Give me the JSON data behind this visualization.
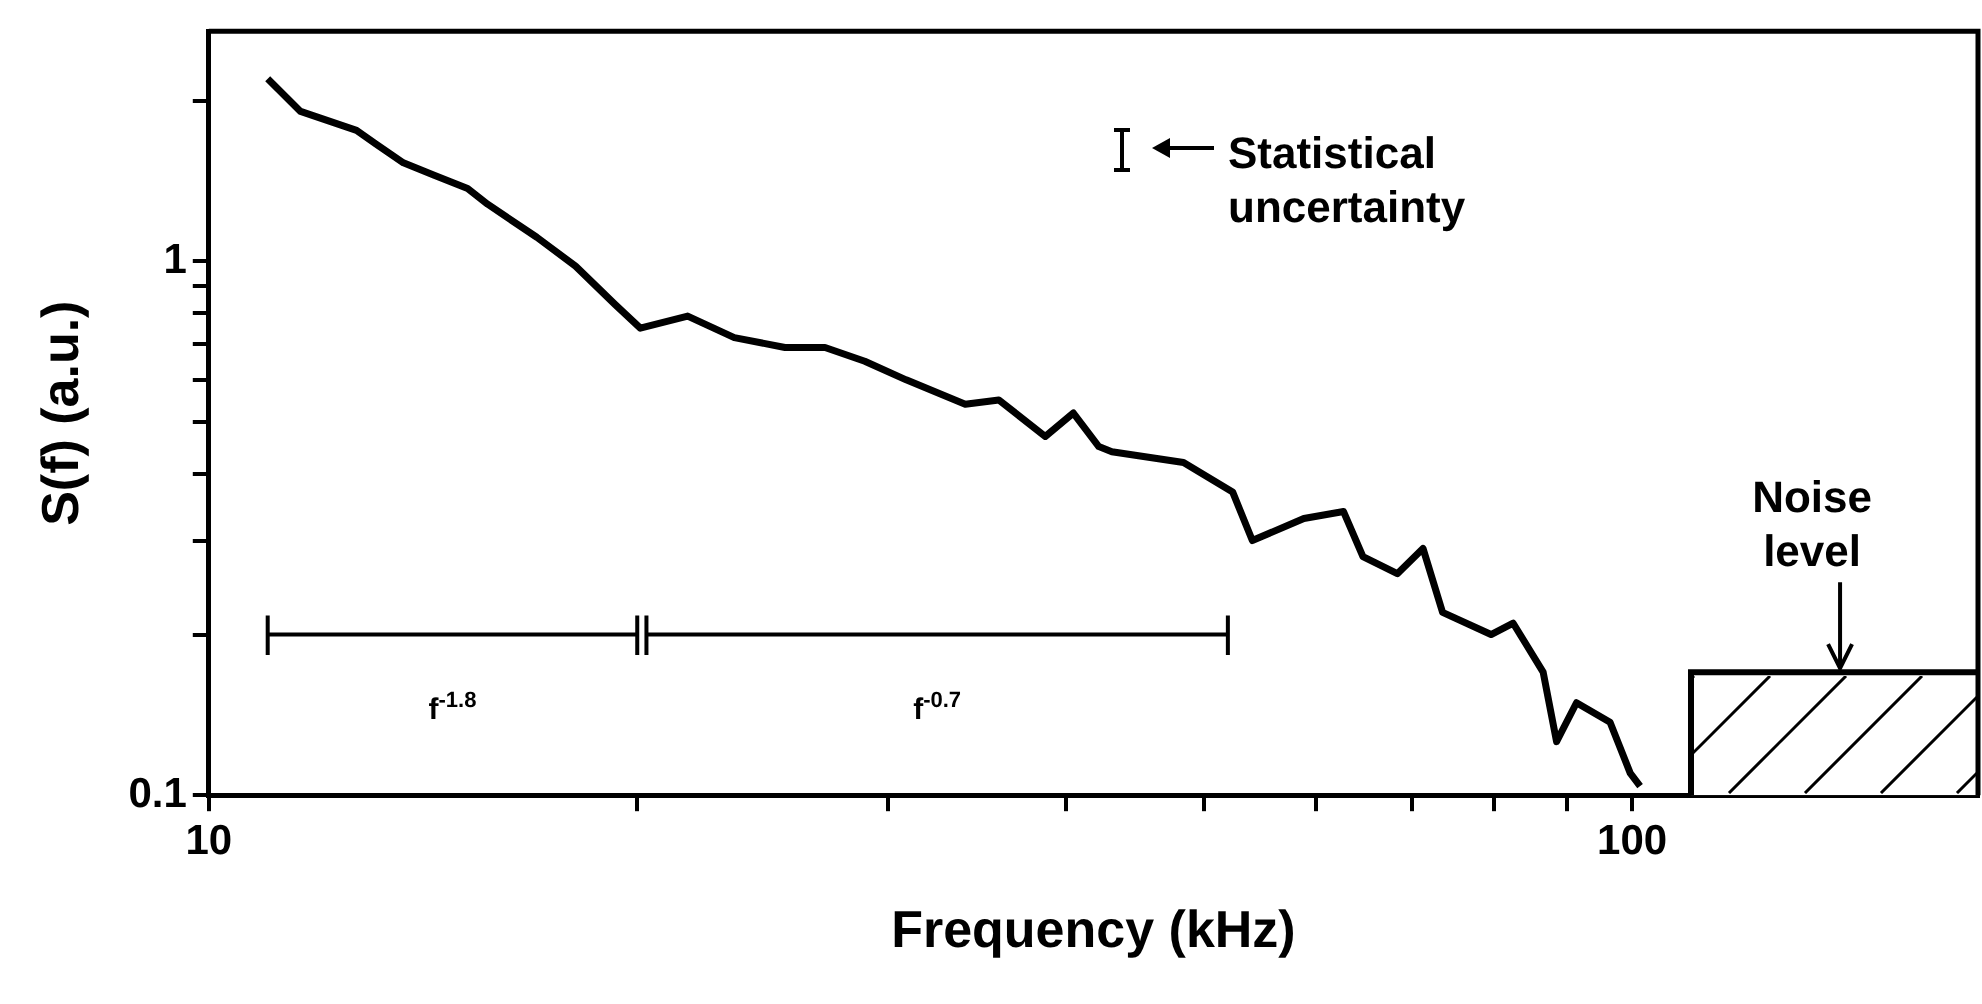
{
  "chart_data": {
    "type": "line",
    "xlabel": "Frequency (kHz)",
    "ylabel": "S(f) (a.u.)",
    "log": "xy",
    "xlim": [
      10,
      175
    ],
    "ylim": [
      0.1,
      2.7
    ],
    "xticks": [
      10,
      {
        "value": 20,
        "label": null
      },
      {
        "value": 30,
        "label": null
      },
      {
        "value": 40,
        "label": null
      },
      {
        "value": 50,
        "label": null
      },
      {
        "value": 60,
        "label": null
      },
      {
        "value": 70,
        "label": null
      },
      {
        "value": 80,
        "label": null
      },
      {
        "value": 90,
        "label": null
      },
      100
    ],
    "yticks": [
      0.1,
      {
        "value": 0.2,
        "label": null
      },
      {
        "value": 0.3,
        "label": null
      },
      {
        "value": 0.4,
        "label": null
      },
      {
        "value": 0.5,
        "label": null
      },
      {
        "value": 0.6,
        "label": null
      },
      {
        "value": 0.7,
        "label": null
      },
      {
        "value": 0.8,
        "label": null
      },
      {
        "value": 0.9,
        "label": null
      },
      1,
      {
        "value": 2,
        "label": null
      }
    ],
    "grid": false,
    "legend": false,
    "marker": "none",
    "series": [
      {
        "color": "#000000",
        "x": [
          11.0,
          11.6,
          12.7,
          13.1,
          13.7,
          14.4,
          15.2,
          15.7,
          17.0,
          18.1,
          19.3,
          20.1,
          21.7,
          23.4,
          25.4,
          27.1,
          28.9,
          30.9,
          34.0,
          35.9,
          38.7,
          40.5,
          42.2,
          43.1,
          48.4,
          52.4,
          54.1,
          58.8,
          62.7,
          64.7,
          68.4,
          71.3,
          73.6,
          79.6,
          82.5,
          86.6,
          88.5,
          91.4,
          96.5,
          99.7,
          101.3
        ],
        "values": [
          2.2,
          1.91,
          1.76,
          1.66,
          1.53,
          1.45,
          1.37,
          1.28,
          1.11,
          0.98,
          0.83,
          0.75,
          0.79,
          0.72,
          0.69,
          0.69,
          0.65,
          0.6,
          0.54,
          0.55,
          0.47,
          0.52,
          0.45,
          0.44,
          0.42,
          0.37,
          0.3,
          0.33,
          0.34,
          0.28,
          0.26,
          0.29,
          0.22,
          0.2,
          0.21,
          0.17,
          0.126,
          0.149,
          0.137,
          0.11,
          0.104
        ]
      },
      {
        "type": "area",
        "color": "#000000",
        "x": [
          110,
          175
        ],
        "values": [
          0.17,
          0.17
        ]
      },
      {
        "type": "line",
        "name": "f$^{-1.8}$",
        "color": "#000000",
        "x": [
          11,
          20
        ],
        "values": [
          0.2,
          0.2
        ],
        "errors": [
          [
            0.183,
            0.217
          ],
          [
            0.183,
            0.217
          ]
        ]
      },
      {
        "type": "line",
        "name": "f$^{-0.7}$",
        "color": "#000000",
        "x": [
          20.3,
          52
        ],
        "values": [
          0.2,
          0.2
        ],
        "errors": [
          [
            0.183,
            0.217
          ],
          [
            0.183,
            0.217
          ]
        ]
      }
    ],
    "annotations": [
      "Statistical uncertainty",
      {
        "text": "Noise level",
        "x": 140,
        "y": 0.17
      }
    ]
  }
}
